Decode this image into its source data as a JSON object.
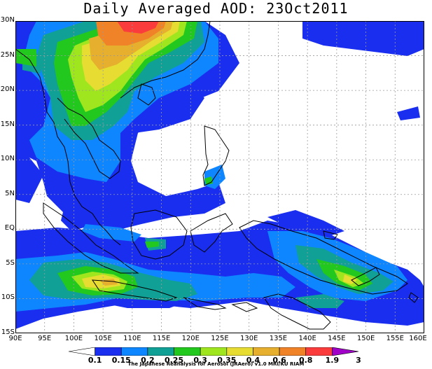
{
  "title": "Daily Averaged AOD: 23Oct2011",
  "lat_labels": [
    "30N",
    "25N",
    "20N",
    "15N",
    "10N",
    "5N",
    "EQ",
    "5S",
    "10S",
    "15S"
  ],
  "lon_labels": [
    "90E",
    "95E",
    "100E",
    "105E",
    "110E",
    "115E",
    "120E",
    "125E",
    "130E",
    "135E",
    "140E",
    "145E",
    "150E",
    "155E",
    "160E"
  ],
  "colorbar": {
    "levels": [
      "0.1",
      "0.15",
      "0.2",
      "0.25",
      "0.3",
      "0.35",
      "0.4",
      "0.6",
      "0.8",
      "1.9",
      "3"
    ],
    "colors": [
      "#ffffff",
      "#1a2ef0",
      "#0e86ff",
      "#10a096",
      "#22c81e",
      "#a0e61e",
      "#e6dc32",
      "#e6af2d",
      "#f08228",
      "#fa3c3c",
      "#a000c8"
    ]
  },
  "credit": "The Japanese Reanalysis for Aerosol (JRAero) v1.0 MRI/KU RIAM"
}
